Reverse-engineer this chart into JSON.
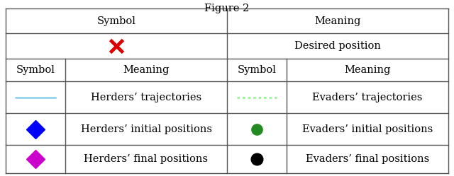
{
  "title": "Figure 2",
  "background": "#ffffff",
  "border_color": "#555555",
  "font_size": 10.5,
  "header1_left": "Symbol",
  "header1_right": "Meaning",
  "header2_row": [
    "Symbol",
    "Meaning",
    "Symbol",
    "Meaning"
  ],
  "rows": [
    {
      "left_symbol": "line_cyan",
      "left_meaning": "Herders’ trajectories",
      "right_symbol": "line_green_dashed",
      "right_meaning": "Evaders’ trajectories"
    },
    {
      "left_symbol": "diamond_blue",
      "left_meaning": "Herders’ initial positions",
      "right_symbol": "circle_green",
      "right_meaning": "Evaders’ initial positions"
    },
    {
      "left_symbol": "diamond_magenta",
      "left_meaning": "Herders’ final positions",
      "right_symbol": "circle_black",
      "right_meaning": "Evaders’ final positions"
    }
  ],
  "desired_row": {
    "symbol": "x_red",
    "meaning": "Desired position"
  },
  "cyan_color": "#87CEEB",
  "green_dashed_color": "#90EE90",
  "blue_diamond_color": "#0000ff",
  "magenta_diamond_color": "#cc00cc",
  "green_circle_color": "#228B22",
  "black_circle_color": "#000000",
  "red_x_color": "#dd0000",
  "table_lw": 1.0
}
